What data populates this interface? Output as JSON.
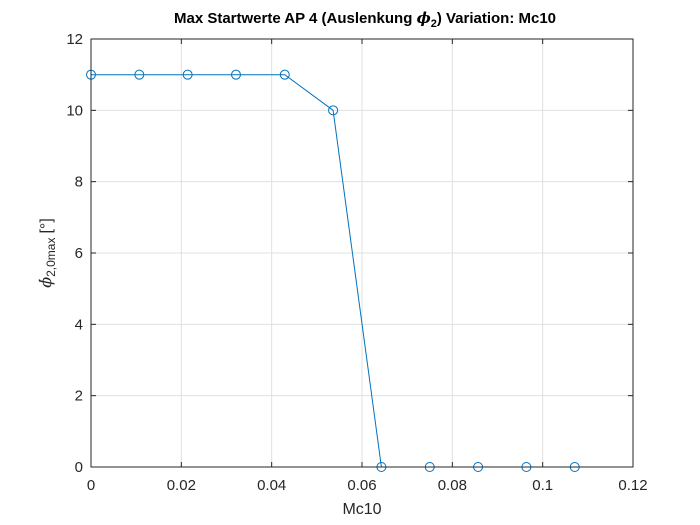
{
  "chart_data": {
    "type": "line",
    "title_prefix": "Max Startwerte AP 4 (Auslenkung ",
    "title_symbol": "ϕ",
    "title_subscript": "2",
    "title_suffix": ")  Variation: Mc10",
    "xlabel": "Mc10",
    "ylabel_symbol": "ϕ̇",
    "ylabel_subscript": "2,0max",
    "ylabel_unit": "[°]",
    "xlim": [
      0,
      0.12
    ],
    "ylim": [
      0,
      12
    ],
    "xticks": [
      0,
      0.02,
      0.04,
      0.06,
      0.08,
      0.1,
      0.12
    ],
    "xtick_labels": [
      "0",
      "0.02",
      "0.04",
      "0.06",
      "0.08",
      "0.1",
      "0.12"
    ],
    "yticks": [
      0,
      2,
      4,
      6,
      8,
      10,
      12
    ],
    "ytick_labels": [
      "0",
      "2",
      "4",
      "6",
      "8",
      "10",
      "12"
    ],
    "grid": true,
    "marker": "circle",
    "series": [
      {
        "color": "#0072BD",
        "x": [
          0,
          0.0107,
          0.0214,
          0.0321,
          0.0429,
          0.0536,
          0.0643,
          0.075,
          0.0857,
          0.0964,
          0.1071
        ],
        "y": [
          11,
          11,
          11,
          11,
          11,
          10,
          0,
          0,
          0,
          0,
          0
        ]
      }
    ]
  }
}
